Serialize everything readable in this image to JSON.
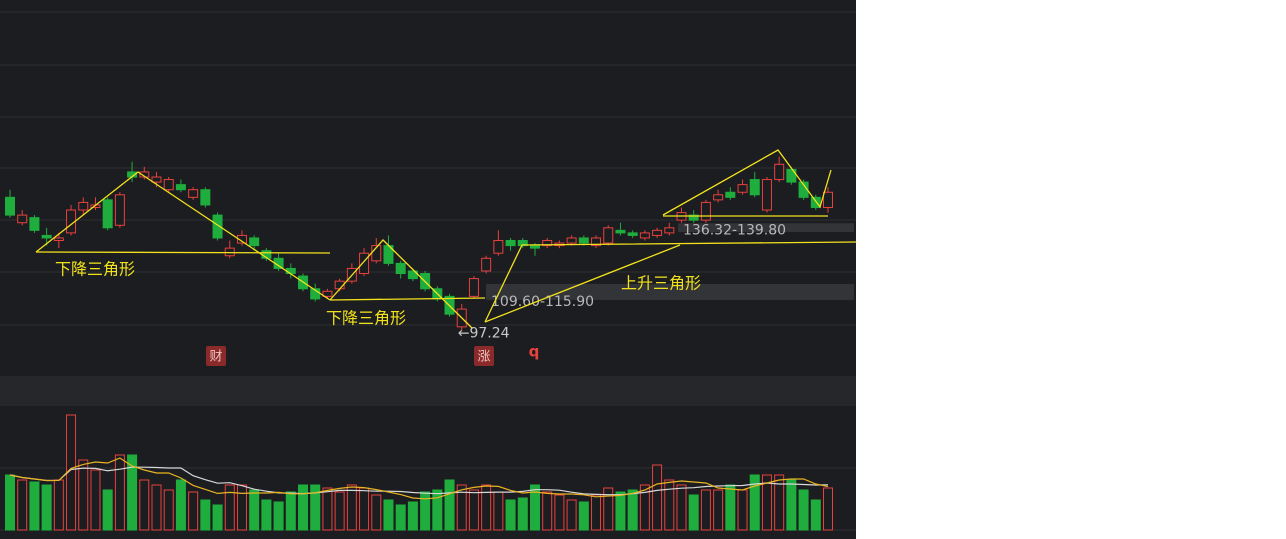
{
  "chart_data": {
    "type": "candlestick",
    "ylim": [
      82.8,
      227.7
    ],
    "volume_ylim": [
      0,
      120
    ],
    "up_color": "#e8413e",
    "down_color": "#1fae3e",
    "candles": [
      [
        150,
        153,
        142,
        143
      ],
      [
        140,
        145,
        139,
        143
      ],
      [
        142,
        143,
        136,
        137
      ],
      [
        135,
        138,
        131,
        134
      ],
      [
        133,
        136,
        130,
        134
      ],
      [
        136,
        147,
        135,
        145
      ],
      [
        145,
        150,
        143,
        148
      ],
      [
        146,
        150,
        145,
        147
      ],
      [
        149,
        150,
        137,
        138
      ],
      [
        139,
        152,
        138,
        151
      ],
      [
        160,
        164,
        156,
        158
      ],
      [
        158,
        162,
        157,
        160
      ],
      [
        156,
        160,
        154,
        158
      ],
      [
        153,
        158,
        152,
        157
      ],
      [
        155,
        157,
        152,
        153
      ],
      [
        150,
        154,
        149,
        153
      ],
      [
        153,
        154,
        146,
        147
      ],
      [
        143,
        144,
        133,
        134
      ],
      [
        127,
        133,
        126,
        130
      ],
      [
        132,
        137,
        131,
        135
      ],
      [
        134,
        135,
        129,
        131
      ],
      [
        129,
        130,
        125,
        126
      ],
      [
        126,
        128,
        121,
        122
      ],
      [
        122,
        124,
        118,
        120
      ],
      [
        119,
        120,
        113,
        114
      ],
      [
        114,
        116,
        109,
        110
      ],
      [
        111,
        114,
        110,
        113
      ],
      [
        114,
        118,
        113,
        117
      ],
      [
        117,
        124,
        116,
        122
      ],
      [
        120,
        130,
        119,
        128
      ],
      [
        125,
        134,
        124,
        131
      ],
      [
        131,
        135,
        123,
        124
      ],
      [
        124,
        125,
        118,
        120
      ],
      [
        121,
        122,
        117,
        118
      ],
      [
        120,
        121,
        113,
        114
      ],
      [
        114,
        115,
        109,
        110
      ],
      [
        111,
        112,
        103,
        104
      ],
      [
        99,
        108,
        97.24,
        106
      ],
      [
        111,
        119,
        110,
        118
      ],
      [
        121,
        127,
        120,
        126
      ],
      [
        128,
        137,
        127,
        133
      ],
      [
        133,
        134,
        129,
        131
      ],
      [
        133,
        134,
        130,
        131
      ],
      [
        131,
        132,
        127,
        130
      ],
      [
        131,
        134,
        130,
        133
      ],
      [
        131,
        133,
        130,
        132
      ],
      [
        132,
        135,
        131,
        134
      ],
      [
        134,
        135,
        131,
        132
      ],
      [
        131,
        135,
        130,
        134
      ],
      [
        132,
        139,
        131,
        138
      ],
      [
        137,
        140,
        135,
        136
      ],
      [
        136,
        137,
        134,
        135
      ],
      [
        134,
        137,
        133,
        136
      ],
      [
        135,
        138,
        134,
        137
      ],
      [
        136,
        140,
        135,
        138
      ],
      [
        141,
        146,
        140,
        144
      ],
      [
        143,
        145,
        140,
        141
      ],
      [
        141,
        149,
        140,
        148
      ],
      [
        149,
        153,
        148,
        151
      ],
      [
        152,
        154,
        149,
        150
      ],
      [
        152,
        157,
        151,
        155
      ],
      [
        157,
        160,
        150,
        151
      ],
      [
        145,
        158,
        144,
        157
      ],
      [
        157,
        166,
        156,
        163
      ],
      [
        161,
        162,
        155,
        156
      ],
      [
        156,
        157,
        149,
        150
      ],
      [
        150,
        151,
        145,
        146
      ],
      [
        146,
        154,
        144,
        152
      ]
    ],
    "volume": [
      55,
      50,
      48,
      45,
      50,
      115,
      70,
      60,
      40,
      75,
      75,
      50,
      45,
      40,
      50,
      38,
      30,
      25,
      45,
      45,
      40,
      30,
      28,
      38,
      45,
      45,
      42,
      38,
      45,
      42,
      35,
      30,
      25,
      28,
      38,
      40,
      50,
      45,
      40,
      45,
      38,
      30,
      32,
      45,
      38,
      35,
      30,
      28,
      35,
      42,
      38,
      40,
      45,
      65,
      50,
      45,
      35,
      40,
      40,
      45,
      40,
      55,
      55,
      55,
      50,
      40,
      30,
      42
    ],
    "zones": [
      {
        "label": "136.32-139.80",
        "low": 136.32,
        "high": 139.8
      },
      {
        "label": "109.60-115.90",
        "low": 109.6,
        "high": 115.9
      }
    ],
    "low_marker": {
      "label": "←97.24",
      "value": 97.24
    },
    "annotations": [
      "下降三角形",
      "下降三角形",
      "上升三角形"
    ],
    "markers": [
      "财",
      "涨",
      "q"
    ]
  }
}
